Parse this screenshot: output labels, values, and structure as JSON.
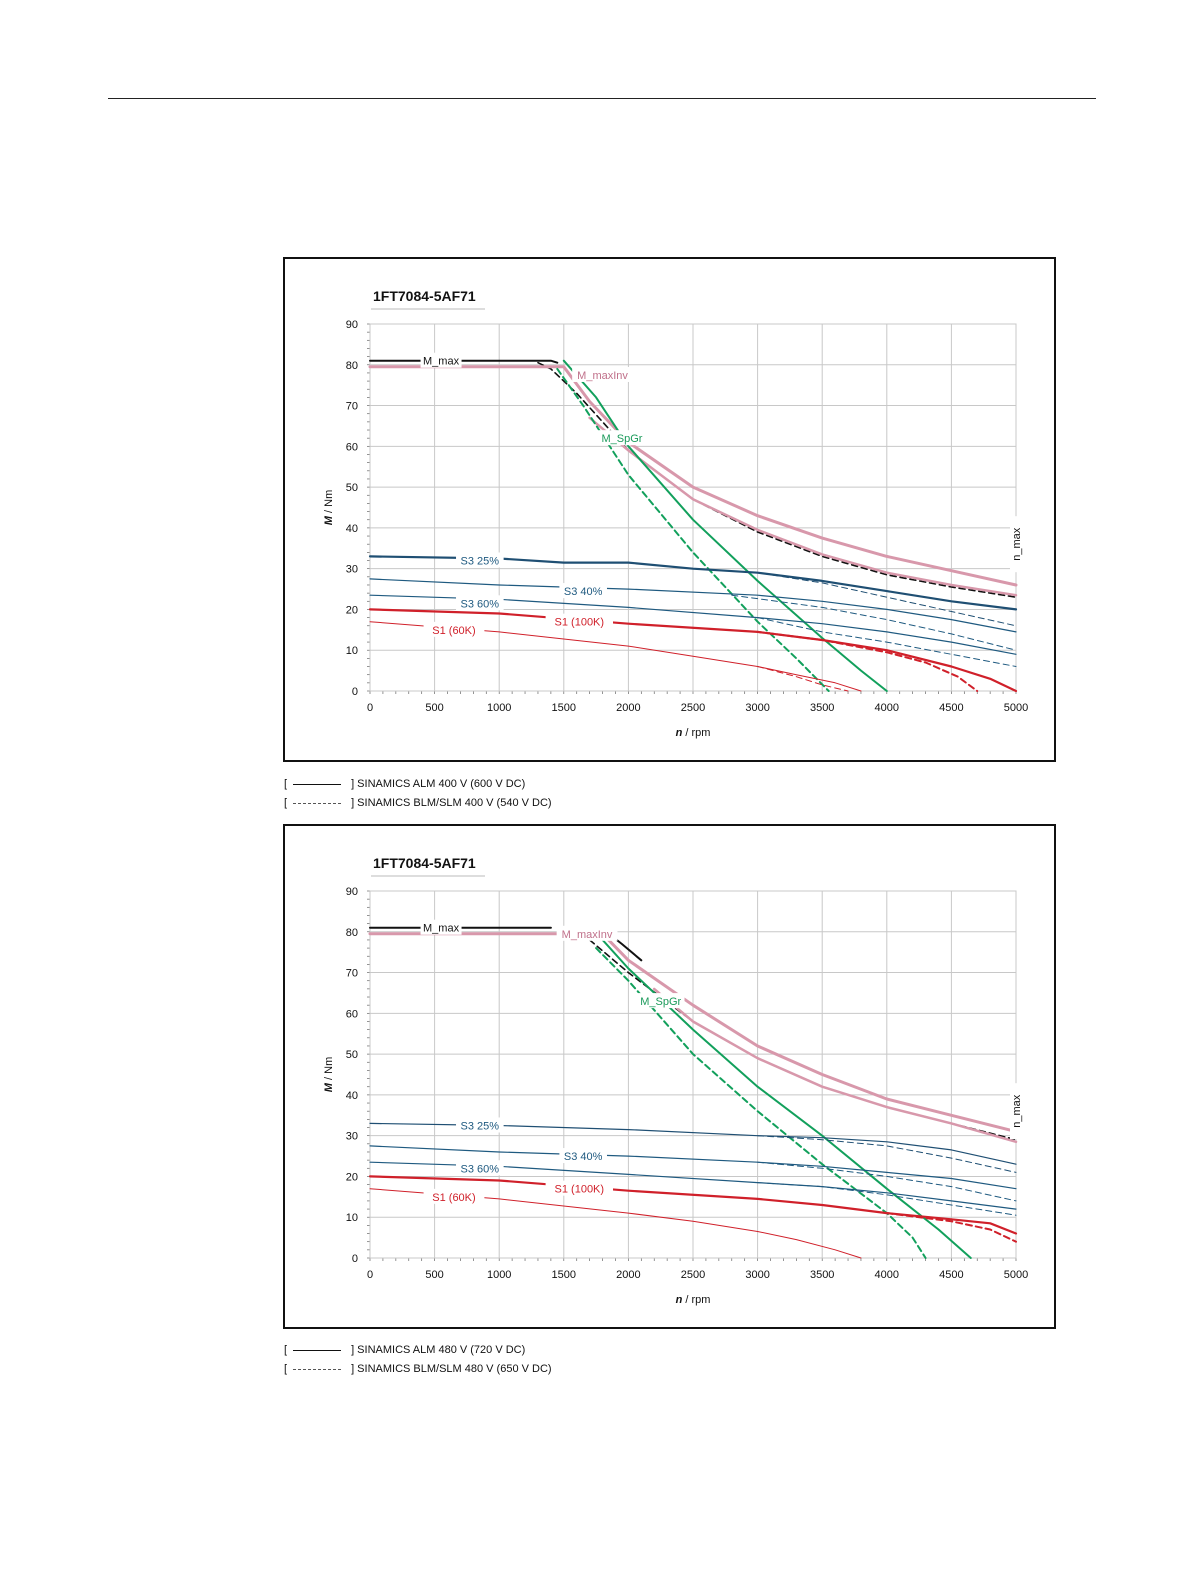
{
  "chart_data": [
    {
      "type": "line",
      "title": "1FT7084-5AF71",
      "xlabel_italic": "n",
      "xlabel_unit": " / rpm",
      "ylabel_italic": "M",
      "ylabel_unit": " / Nm",
      "xlim": [
        0,
        5000
      ],
      "ylim": [
        0,
        90
      ],
      "xticks": [
        "0",
        "500",
        "1000",
        "1500",
        "2000",
        "2500",
        "3000",
        "3500",
        "4000",
        "4500",
        "5000"
      ],
      "yticks": [
        "0",
        "10",
        "20",
        "30",
        "40",
        "50",
        "60",
        "70",
        "80",
        "90"
      ],
      "grid": true,
      "nmax_label": "n_max",
      "labels": [
        {
          "text": "M_max",
          "x": 550,
          "y": 81,
          "color": "#111111"
        },
        {
          "text": "M_maxInv",
          "x": 1800,
          "y": 77.5,
          "color": "#c0708a"
        },
        {
          "text": "M_SpGr",
          "x": 1950,
          "y": 62,
          "color": "#1a9a5a"
        },
        {
          "text": "S3 25%",
          "x": 850,
          "y": 32,
          "color": "#1f5a80"
        },
        {
          "text": "S3 40%",
          "x": 1650,
          "y": 24.5,
          "color": "#1f5a80"
        },
        {
          "text": "S3 60%",
          "x": 850,
          "y": 21.5,
          "color": "#1f5a80"
        },
        {
          "text": "S1 (100K)",
          "x": 1620,
          "y": 17,
          "color": "#d0202a"
        },
        {
          "text": "S1 (60K)",
          "x": 650,
          "y": 15,
          "color": "#d0202a"
        }
      ],
      "series": [
        {
          "name": "M_max ALM",
          "color": "#111111",
          "width": 2,
          "dash": false,
          "x": [
            0,
            1400,
            1450
          ],
          "y": [
            81,
            81,
            80.5
          ]
        },
        {
          "name": "M_max BLM/SLM",
          "color": "#111111",
          "width": 1.6,
          "dash": true,
          "x": [
            1300,
            1400,
            1600,
            1800,
            2000,
            2500,
            3000,
            3500,
            4000,
            4500,
            5000
          ],
          "y": [
            80.5,
            79,
            73,
            66,
            59,
            47,
            39,
            33,
            28.5,
            25.5,
            23
          ]
        },
        {
          "name": "M_maxInv ALM",
          "color": "#d898ab",
          "width": 3,
          "dash": false,
          "x": [
            0,
            1400,
            1500,
            1700,
            2000,
            2500,
            3000,
            3500,
            4000,
            4500,
            5000
          ],
          "y": [
            79.5,
            79.5,
            79.5,
            71,
            61,
            50,
            43,
            37.5,
            33,
            29.5,
            26
          ]
        },
        {
          "name": "M_maxInv BLM/SLM",
          "color": "#d898ab",
          "width": 2.5,
          "dash": false,
          "x": [
            1700,
            2000,
            2500,
            3000,
            3500,
            4000,
            4500,
            5000
          ],
          "y": [
            67,
            59,
            47,
            39.5,
            33.5,
            29,
            26,
            23.5
          ]
        },
        {
          "name": "M_SpGr ALM",
          "color": "#12a05c",
          "width": 2,
          "dash": false,
          "x": [
            1500,
            1750,
            2000,
            2500,
            3000,
            3500,
            3800,
            4000
          ],
          "y": [
            81,
            72,
            60,
            42,
            27,
            13,
            5,
            0
          ]
        },
        {
          "name": "M_SpGr BLM/SLM",
          "color": "#12a05c",
          "width": 2,
          "dash": true,
          "x": [
            1450,
            1650,
            2000,
            2500,
            3000,
            3300,
            3550
          ],
          "y": [
            79,
            70,
            53,
            34,
            17,
            8,
            0
          ]
        },
        {
          "name": "S3 25% ALM",
          "color": "#1f4f73",
          "width": 2.2,
          "dash": false,
          "x": [
            0,
            1000,
            1500,
            2000,
            2500,
            3000,
            3500,
            4000,
            4500,
            5000
          ],
          "y": [
            33,
            32.5,
            31.5,
            31.5,
            30,
            29,
            27,
            24.5,
            22,
            20
          ]
        },
        {
          "name": "S3 25% BLM/SLM",
          "color": "#1f4f73",
          "width": 1,
          "dash": true,
          "x": [
            2500,
            3000,
            3500,
            4000,
            4500,
            5000
          ],
          "y": [
            30,
            29,
            26.5,
            23,
            19.5,
            16
          ]
        },
        {
          "name": "S3 40% ALM",
          "color": "#1f5a80",
          "width": 1.2,
          "dash": false,
          "x": [
            0,
            1000,
            2000,
            3000,
            3500,
            4000,
            4500,
            5000
          ],
          "y": [
            27.5,
            26,
            25,
            23.5,
            22,
            20,
            17.5,
            14.5
          ]
        },
        {
          "name": "S3 40% BLM/SLM",
          "color": "#1f5a80",
          "width": 1,
          "dash": true,
          "x": [
            2800,
            3500,
            4000,
            4500,
            5000
          ],
          "y": [
            23.5,
            20.5,
            17.5,
            14,
            10
          ]
        },
        {
          "name": "S3 60% ALM",
          "color": "#1f5a80",
          "width": 1.2,
          "dash": false,
          "x": [
            0,
            1000,
            2000,
            3000,
            3500,
            4000,
            4500,
            5000
          ],
          "y": [
            23.5,
            22.5,
            20.5,
            18,
            16.5,
            14.5,
            12,
            9
          ]
        },
        {
          "name": "S3 60% BLM/SLM",
          "color": "#1f5a80",
          "width": 1,
          "dash": true,
          "x": [
            3000,
            3500,
            4000,
            4500,
            5000
          ],
          "y": [
            18,
            14.5,
            12,
            9,
            6
          ]
        },
        {
          "name": "S1 (100K) ALM",
          "color": "#d0202a",
          "width": 2.2,
          "dash": false,
          "x": [
            0,
            1000,
            2000,
            3000,
            3500,
            4000,
            4500,
            4800,
            5000
          ],
          "y": [
            20,
            19,
            16.5,
            14.5,
            12.5,
            10,
            6,
            3,
            0
          ]
        },
        {
          "name": "S1 (100K) BLM/SLM",
          "color": "#d0202a",
          "width": 2,
          "dash": true,
          "x": [
            3000,
            3500,
            4000,
            4300,
            4550,
            4700
          ],
          "y": [
            14.5,
            12.5,
            9.5,
            7,
            3.5,
            0
          ]
        },
        {
          "name": "S1 (60K) ALM",
          "color": "#d0202a",
          "width": 1,
          "dash": false,
          "x": [
            0,
            1000,
            2000,
            2500,
            3000,
            3300,
            3600,
            3800
          ],
          "y": [
            17,
            14.5,
            11,
            8.5,
            6,
            4,
            2,
            0
          ]
        },
        {
          "name": "S1 (60K) BLM/SLM",
          "color": "#d0202a",
          "width": 1,
          "dash": true,
          "x": [
            3000,
            3300,
            3500,
            3700
          ],
          "y": [
            6,
            3.5,
            1.5,
            0
          ]
        }
      ]
    },
    {
      "type": "line",
      "title": "1FT7084-5AF71",
      "xlabel_italic": "n",
      "xlabel_unit": " / rpm",
      "ylabel_italic": "M",
      "ylabel_unit": " / Nm",
      "xlim": [
        0,
        5000
      ],
      "ylim": [
        0,
        90
      ],
      "xticks": [
        "0",
        "500",
        "1000",
        "1500",
        "2000",
        "2500",
        "3000",
        "3500",
        "4000",
        "4500",
        "5000"
      ],
      "yticks": [
        "0",
        "10",
        "20",
        "30",
        "40",
        "50",
        "60",
        "70",
        "80",
        "90"
      ],
      "grid": true,
      "nmax_label": "n_max",
      "labels": [
        {
          "text": "M_max",
          "x": 550,
          "y": 81,
          "color": "#111111"
        },
        {
          "text": "M_maxInv",
          "x": 1680,
          "y": 79.5,
          "color": "#c0708a"
        },
        {
          "text": "M_SpGr",
          "x": 2250,
          "y": 63,
          "color": "#1a9a5a"
        },
        {
          "text": "S3 25%",
          "x": 850,
          "y": 32.5,
          "color": "#1f5a80"
        },
        {
          "text": "S3 40%",
          "x": 1650,
          "y": 25,
          "color": "#1f5a80"
        },
        {
          "text": "S3 60%",
          "x": 850,
          "y": 22,
          "color": "#1f5a80"
        },
        {
          "text": "S1 (100K)",
          "x": 1620,
          "y": 17,
          "color": "#d0202a"
        },
        {
          "text": "S1 (60K)",
          "x": 650,
          "y": 15,
          "color": "#d0202a"
        }
      ],
      "series": [
        {
          "name": "M_max ALM",
          "color": "#111111",
          "width": 2,
          "dash": false,
          "x": [
            0,
            1400
          ],
          "y": [
            81,
            81
          ]
        },
        {
          "name": "M_max ALM tail",
          "color": "#111111",
          "width": 2,
          "dash": false,
          "x": [
            1850,
            1950,
            2100
          ],
          "y": [
            79.5,
            77,
            73
          ]
        },
        {
          "name": "M_max BLM/SLM",
          "color": "#111111",
          "width": 1.6,
          "dash": true,
          "x": [
            1700,
            2000,
            2500,
            3000,
            3500,
            4000,
            4500,
            5000
          ],
          "y": [
            78,
            70,
            58,
            49,
            42,
            37,
            33,
            29
          ]
        },
        {
          "name": "M_maxInv ALM",
          "color": "#d898ab",
          "width": 3,
          "dash": false,
          "x": [
            0,
            1400,
            1800,
            2000,
            2500,
            3000,
            3500,
            4000,
            4500,
            5000
          ],
          "y": [
            79.5,
            79.5,
            79.5,
            73,
            62,
            52,
            45,
            39,
            35,
            31
          ]
        },
        {
          "name": "M_maxInv BLM/SLM",
          "color": "#d898ab",
          "width": 2.5,
          "dash": false,
          "x": [
            2200,
            2500,
            3000,
            3500,
            4000,
            4500,
            5000
          ],
          "y": [
            66,
            58,
            49,
            42,
            37,
            33,
            28.5
          ]
        },
        {
          "name": "M_SpGr ALM",
          "color": "#12a05c",
          "width": 2,
          "dash": false,
          "x": [
            1800,
            2000,
            2500,
            3000,
            3500,
            4000,
            4400,
            4650
          ],
          "y": [
            78,
            71,
            56,
            42,
            30,
            17,
            7,
            0
          ]
        },
        {
          "name": "M_SpGr BLM/SLM",
          "color": "#12a05c",
          "width": 2,
          "dash": true,
          "x": [
            1750,
            2000,
            2500,
            3000,
            3500,
            4000,
            4200,
            4300
          ],
          "y": [
            76,
            68,
            50,
            36,
            23,
            11,
            5,
            0
          ]
        },
        {
          "name": "S3 25% ALM",
          "color": "#1f4f73",
          "width": 1.2,
          "dash": false,
          "x": [
            0,
            1000,
            2000,
            3000,
            3500,
            4000,
            4500,
            5000
          ],
          "y": [
            33,
            32.5,
            31.5,
            30,
            29.5,
            28.5,
            26.5,
            23
          ]
        },
        {
          "name": "S3 25% BLM/SLM",
          "color": "#1f4f73",
          "width": 1,
          "dash": true,
          "x": [
            3000,
            3500,
            4000,
            4500,
            5000
          ],
          "y": [
            30,
            29,
            27.5,
            24.5,
            21
          ]
        },
        {
          "name": "S3 40% ALM",
          "color": "#1f5a80",
          "width": 1.2,
          "dash": false,
          "x": [
            0,
            1000,
            2000,
            3000,
            3500,
            4000,
            4500,
            5000
          ],
          "y": [
            27.5,
            26,
            25,
            23.5,
            22.5,
            21,
            19.5,
            17
          ]
        },
        {
          "name": "S3 40% BLM/SLM",
          "color": "#1f5a80",
          "width": 1,
          "dash": true,
          "x": [
            3000,
            3500,
            4000,
            4500,
            5000
          ],
          "y": [
            23.5,
            22,
            20,
            17.5,
            14
          ]
        },
        {
          "name": "S3 60% ALM",
          "color": "#1f5a80",
          "width": 1.2,
          "dash": false,
          "x": [
            0,
            1000,
            2000,
            3000,
            3500,
            4000,
            4500,
            5000
          ],
          "y": [
            23.5,
            22.5,
            20.5,
            18.5,
            17.5,
            16,
            14,
            12
          ]
        },
        {
          "name": "S3 60% BLM/SLM",
          "color": "#1f5a80",
          "width": 1,
          "dash": true,
          "x": [
            3000,
            3500,
            4000,
            4500,
            5000
          ],
          "y": [
            18.5,
            17.5,
            15.5,
            13,
            10.5
          ]
        },
        {
          "name": "S1 (100K) ALM",
          "color": "#d0202a",
          "width": 2.2,
          "dash": false,
          "x": [
            0,
            1000,
            2000,
            3000,
            3500,
            4000,
            4500,
            4800,
            5000
          ],
          "y": [
            20,
            19,
            16.5,
            14.5,
            13,
            11,
            9.5,
            8.5,
            6
          ]
        },
        {
          "name": "S1 (100K) BLM/SLM",
          "color": "#d0202a",
          "width": 2,
          "dash": true,
          "x": [
            4000,
            4500,
            4800,
            5000
          ],
          "y": [
            11,
            9,
            7,
            4
          ]
        },
        {
          "name": "S1 (60K) ALM",
          "color": "#d0202a",
          "width": 1,
          "dash": false,
          "x": [
            0,
            1000,
            2000,
            2500,
            3000,
            3300,
            3600,
            3800
          ],
          "y": [
            17,
            14.5,
            11,
            9,
            6.5,
            4.5,
            2,
            0
          ]
        }
      ]
    }
  ],
  "legends": [
    {
      "alm_text": "]  SINAMICS ALM 400 V (600 V DC)",
      "blm_text": "]  SINAMICS BLM/SLM 400 V (540 V DC)"
    },
    {
      "alm_text": "]  SINAMICS ALM 480 V (720 V DC)",
      "blm_text": "] SINAMICS BLM/SLM 480 V (650 V DC)"
    }
  ],
  "bracket_open": "["
}
